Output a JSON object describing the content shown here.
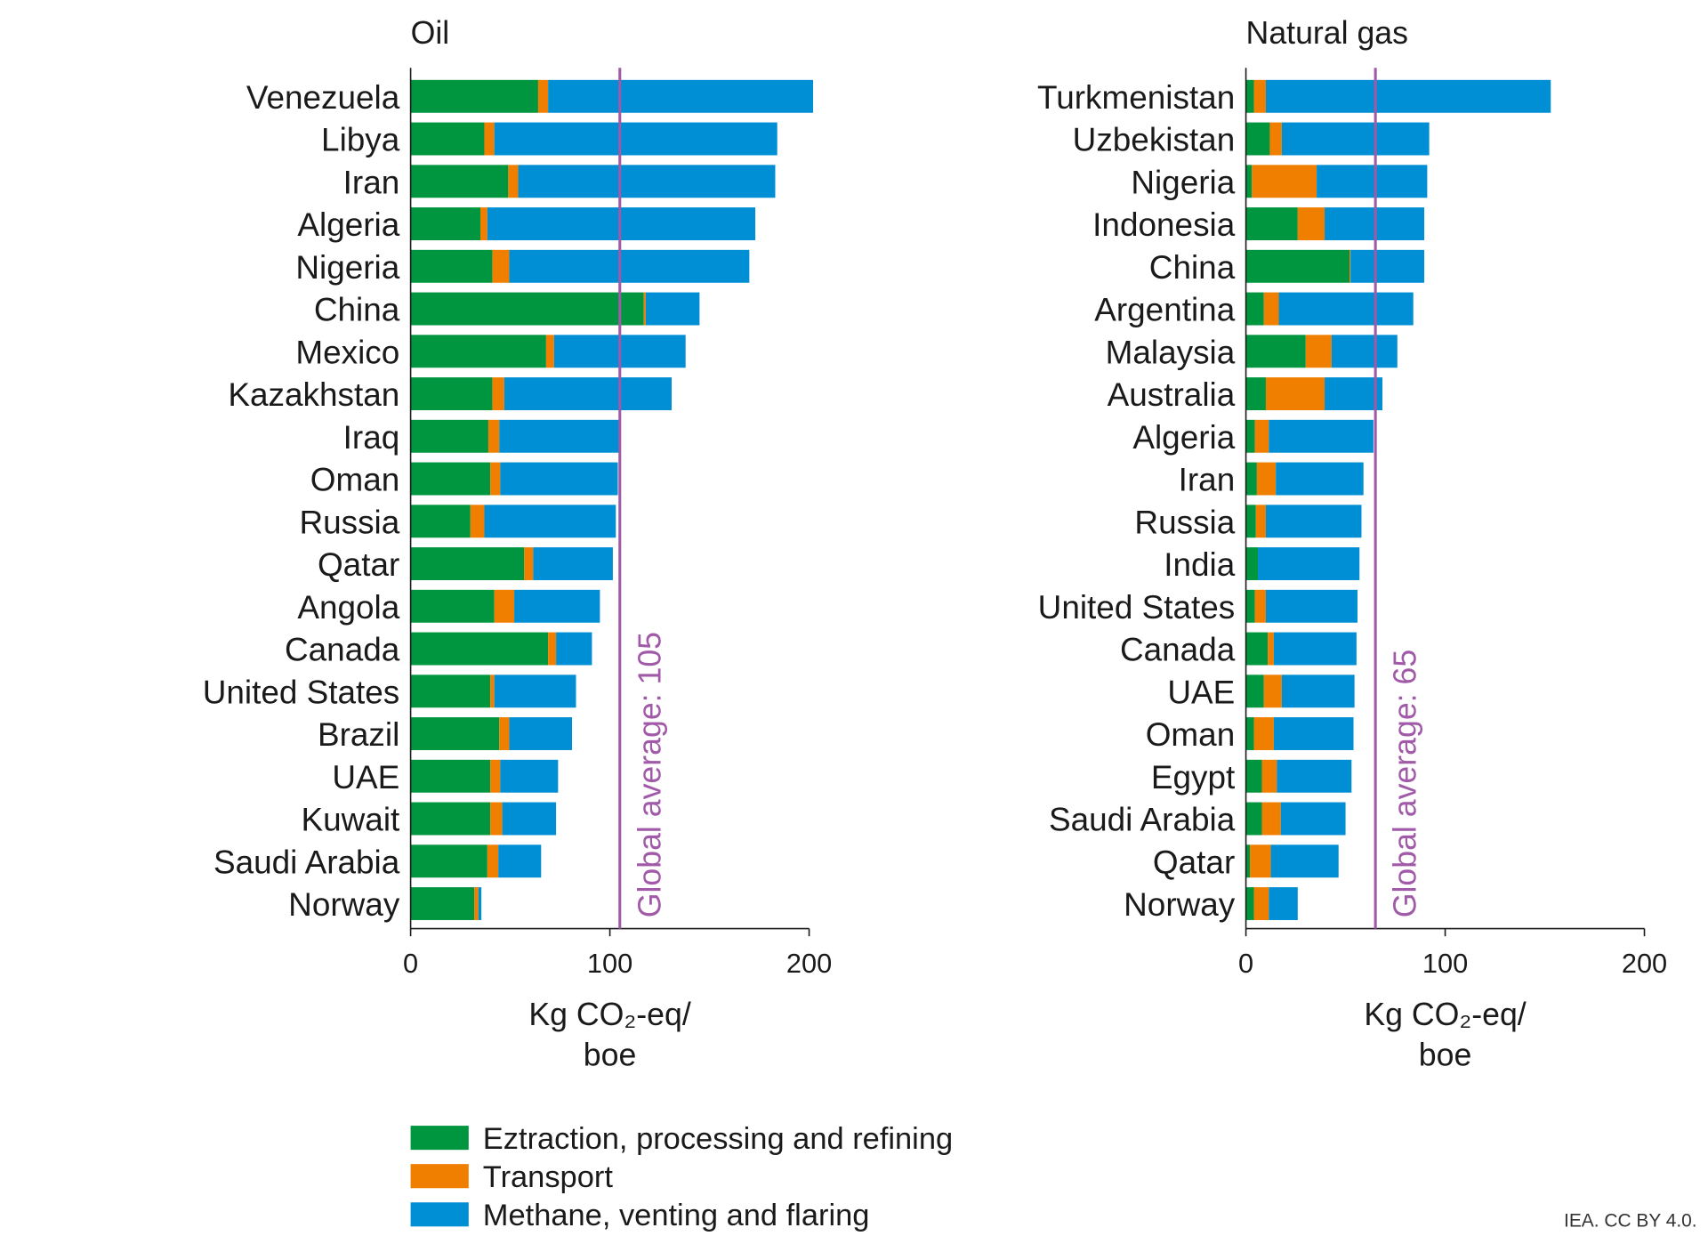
{
  "colors": {
    "extraction": "#00963f",
    "transport": "#f07f00",
    "methane": "#008fd5",
    "average": "#a05aa8",
    "axis": "#1a1a1a"
  },
  "legend": [
    {
      "key": "extraction",
      "label": "Eztraction, processing and refining"
    },
    {
      "key": "transport",
      "label": "Transport"
    },
    {
      "key": "methane",
      "label": "Methane, venting and flaring"
    }
  ],
  "credit": "IEA. CC BY 4.0.",
  "chart_data": [
    {
      "type": "bar",
      "orientation": "horizontal",
      "stacked": true,
      "title": "Oil",
      "xlabel": [
        "Kg CO₂-eq/",
        "boe"
      ],
      "xlim": [
        0,
        200
      ],
      "xticks": [
        0,
        100,
        200
      ],
      "average": {
        "value": 105,
        "label": "Global average: 105"
      },
      "categories": [
        "Venezuela",
        "Libya",
        "Iran",
        "Algeria",
        "Nigeria",
        "China",
        "Mexico",
        "Kazakhstan",
        "Iraq",
        "Oman",
        "Russia",
        "Qatar",
        "Angola",
        "Canada",
        "United States",
        "Brazil",
        "UAE",
        "Kuwait",
        "Saudi Arabia",
        "Norway"
      ],
      "series": [
        {
          "name": "Eztraction, processing and refining",
          "key": "extraction",
          "values": [
            64,
            37,
            49,
            35,
            41,
            117,
            68,
            41,
            39,
            40,
            30,
            57,
            42,
            69,
            40,
            44.5,
            40,
            40,
            38.5,
            32
          ]
        },
        {
          "name": "Transport",
          "key": "transport",
          "values": [
            5,
            5,
            5,
            3.5,
            8.5,
            1,
            4,
            6,
            5.5,
            5,
            7,
            4.5,
            10,
            4,
            2,
            5,
            5,
            6,
            5.5,
            2
          ]
        },
        {
          "name": "Methane, venting and flaring",
          "key": "methane",
          "values": [
            133,
            142,
            129,
            134.5,
            120.5,
            27,
            66,
            84,
            60.5,
            59,
            66,
            40,
            43,
            18,
            41,
            31.5,
            29,
            27,
            21.5,
            1.5
          ]
        }
      ]
    },
    {
      "type": "bar",
      "orientation": "horizontal",
      "stacked": true,
      "title": "Natural gas",
      "xlabel": [
        "Kg CO₂-eq/",
        "boe"
      ],
      "xlim": [
        0,
        200
      ],
      "xticks": [
        0,
        100,
        200
      ],
      "average": {
        "value": 65,
        "label": "Global average: 65"
      },
      "categories": [
        "Turkmenistan",
        "Uzbekistan",
        "Nigeria",
        "Indonesia",
        "China",
        "Argentina",
        "Malaysia",
        "Australia",
        "Algeria",
        "Iran",
        "Russia",
        "India",
        "United States",
        "Canada",
        "UAE",
        "Oman",
        "Egypt",
        "Saudi Arabia",
        "Qatar",
        "Norway"
      ],
      "series": [
        {
          "name": "Eztraction, processing and refining",
          "key": "extraction",
          "values": [
            4,
            12,
            3,
            26,
            52,
            9,
            30,
            10,
            4.5,
            5.5,
            5,
            6,
            4.5,
            11,
            9,
            4,
            8,
            8,
            2,
            4
          ]
        },
        {
          "name": "Transport",
          "key": "transport",
          "values": [
            6,
            6,
            32.5,
            13.5,
            0.5,
            7.5,
            13,
            29.5,
            7,
            9.5,
            5,
            0,
            5.5,
            3,
            9,
            10,
            7.5,
            9.5,
            10.5,
            7.5
          ]
        },
        {
          "name": "Methane, venting and flaring",
          "key": "methane",
          "values": [
            143,
            74,
            55.5,
            50,
            37,
            67.5,
            33,
            29,
            52.5,
            44,
            48,
            51,
            46,
            41.5,
            36.5,
            40,
            37.5,
            32.5,
            34,
            14.5
          ]
        }
      ]
    }
  ]
}
